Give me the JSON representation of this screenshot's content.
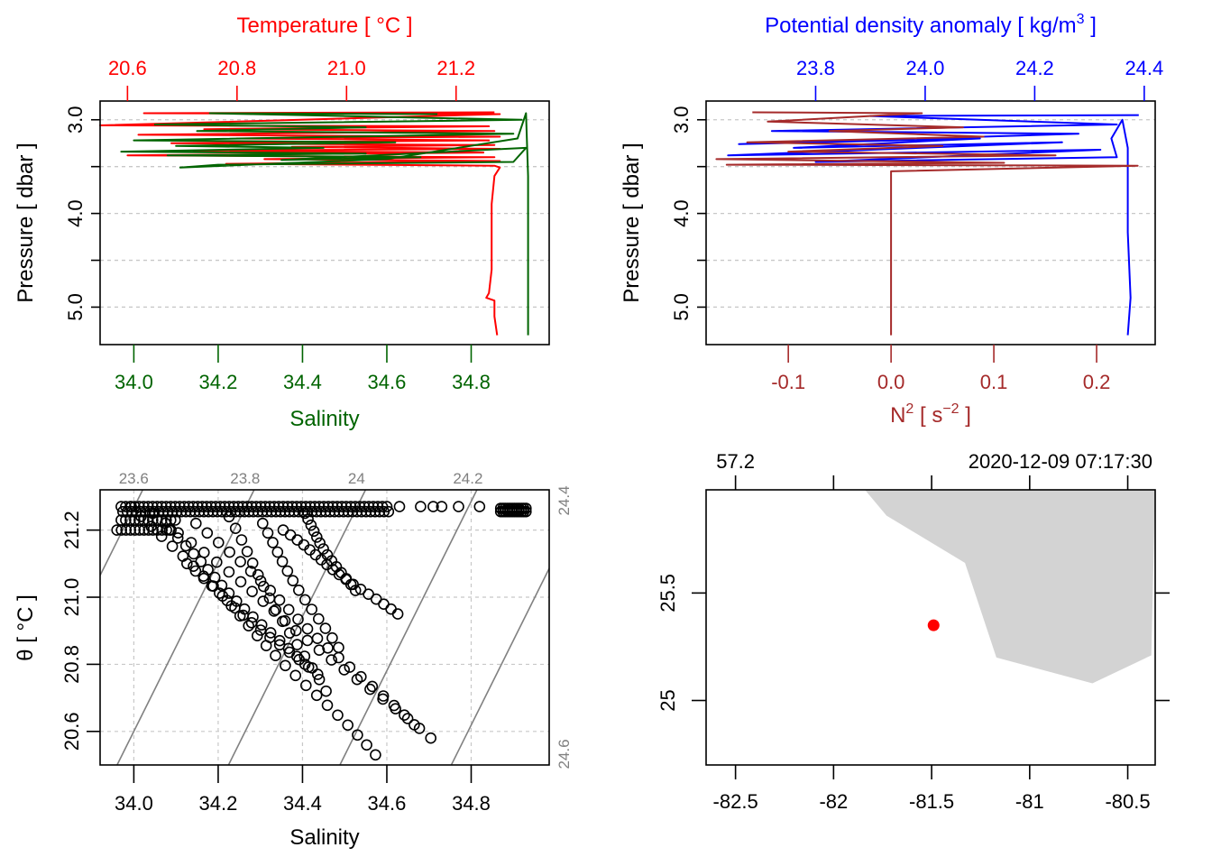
{
  "colors": {
    "temperature": "#ff0000",
    "salinity": "#006400",
    "density": "#0000ff",
    "n2": "#a52a2a",
    "grid": "#c8c8c8",
    "isopycnal": "#808080",
    "land": "#d3d3d3",
    "station": "#ff0000",
    "axis": "#000000"
  },
  "chart_data": [
    {
      "id": "profile-TS",
      "type": "line",
      "title": "",
      "ylabel": "Pressure [ dbar ]",
      "ylim": [
        5.4,
        2.8
      ],
      "yticks": [
        3.0,
        4.0,
        5.0
      ],
      "yminor": [
        3.5,
        4.5
      ],
      "ytick_labels": [
        "3.0",
        "4.0",
        "5.0"
      ],
      "grid": true,
      "x_bottom": {
        "label": "Salinity",
        "range": [
          33.92,
          34.985
        ],
        "ticks": [
          34.0,
          34.2,
          34.4,
          34.6,
          34.8
        ],
        "tick_labels": [
          "34.0",
          "34.2",
          "34.4",
          "34.6",
          "34.8"
        ]
      },
      "x_top": {
        "label": "Temperature [ °C ]",
        "range": [
          20.55,
          21.37
        ],
        "ticks": [
          20.6,
          20.8,
          21.0,
          21.2
        ],
        "tick_labels": [
          "20.6",
          "20.8",
          "21.0",
          "21.2"
        ]
      },
      "series": [
        {
          "name": "Temperature",
          "axis": "top",
          "points": [
            [
              21.27,
              2.92
            ],
            [
              20.63,
              2.93
            ],
            [
              21.28,
              2.94
            ],
            [
              20.55,
              3.06
            ],
            [
              21.26,
              3.07
            ],
            [
              20.74,
              3.1
            ],
            [
              21.27,
              3.12
            ],
            [
              20.62,
              3.16
            ],
            [
              21.28,
              3.18
            ],
            [
              20.8,
              3.2
            ],
            [
              21.26,
              3.22
            ],
            [
              20.68,
              3.25
            ],
            [
              21.27,
              3.27
            ],
            [
              20.9,
              3.29
            ],
            [
              21.28,
              3.31
            ],
            [
              20.72,
              3.33
            ],
            [
              21.25,
              3.35
            ],
            [
              20.6,
              3.38
            ],
            [
              21.27,
              3.4
            ],
            [
              20.85,
              3.42
            ],
            [
              21.28,
              3.44
            ],
            [
              20.78,
              3.47
            ],
            [
              21.27,
              3.49
            ],
            [
              21.28,
              3.51
            ],
            [
              21.27,
              3.6
            ],
            [
              21.265,
              3.9
            ],
            [
              21.265,
              4.3
            ],
            [
              21.265,
              4.6
            ],
            [
              21.26,
              4.85
            ],
            [
              21.255,
              4.9
            ],
            [
              21.27,
              4.93
            ],
            [
              21.27,
              5.1
            ],
            [
              21.275,
              5.3
            ]
          ]
        },
        {
          "name": "Salinity",
          "axis": "bottom",
          "points": [
            [
              34.72,
              2.94
            ],
            [
              34.18,
              2.93
            ],
            [
              34.92,
              3.0
            ],
            [
              34.05,
              3.05
            ],
            [
              34.55,
              3.08
            ],
            [
              34.15,
              3.12
            ],
            [
              34.9,
              3.15
            ],
            [
              34.0,
              3.22
            ],
            [
              34.62,
              3.24
            ],
            [
              34.1,
              3.28
            ],
            [
              34.45,
              3.3
            ],
            [
              33.97,
              3.34
            ],
            [
              34.55,
              3.36
            ],
            [
              34.08,
              3.38
            ],
            [
              34.68,
              3.4
            ],
            [
              34.35,
              3.43
            ],
            [
              34.93,
              3.3
            ],
            [
              34.9,
              3.45
            ],
            [
              34.2,
              3.48
            ],
            [
              34.11,
              3.51
            ],
            [
              34.6,
              3.42
            ],
            [
              34.91,
              3.2
            ],
            [
              34.93,
              2.93
            ],
            [
              34.935,
              3.6
            ],
            [
              34.935,
              4.2
            ],
            [
              34.935,
              4.8
            ],
            [
              34.935,
              5.3
            ]
          ]
        }
      ]
    },
    {
      "id": "profile-density-N2",
      "type": "line",
      "title": "",
      "ylabel": "Pressure [ dbar ]",
      "ylim": [
        5.4,
        2.8
      ],
      "yticks": [
        3.0,
        4.0,
        5.0
      ],
      "yminor": [
        3.5,
        4.5
      ],
      "ytick_labels": [
        "3.0",
        "4.0",
        "5.0"
      ],
      "grid": true,
      "x_bottom": {
        "label": "N² [ s⁻² ]",
        "range": [
          -0.18,
          0.257
        ],
        "ticks": [
          -0.1,
          0.0,
          0.1,
          0.2
        ],
        "tick_labels": [
          "-0.1",
          "0.0",
          "0.1",
          "0.2"
        ]
      },
      "x_top": {
        "label": "Potential density anomaly [ kg/m³ ]",
        "range": [
          23.6,
          24.42
        ],
        "ticks": [
          23.8,
          24.0,
          24.2,
          24.4
        ],
        "tick_labels": [
          "23.8",
          "24.0",
          "24.2",
          "24.4"
        ]
      },
      "series": [
        {
          "name": "Potential density anomaly",
          "axis": "top",
          "points": [
            [
              24.39,
              2.95
            ],
            [
              23.9,
              2.96
            ],
            [
              24.35,
              3.05
            ],
            [
              23.72,
              3.12
            ],
            [
              24.28,
              3.15
            ],
            [
              23.66,
              3.26
            ],
            [
              24.1,
              3.2
            ],
            [
              23.76,
              3.3
            ],
            [
              24.25,
              3.24
            ],
            [
              23.64,
              3.38
            ],
            [
              24.32,
              3.32
            ],
            [
              23.8,
              3.45
            ],
            [
              24.35,
              3.4
            ],
            [
              24.34,
              3.2
            ],
            [
              24.36,
              3.0
            ],
            [
              24.37,
              3.3
            ],
            [
              24.37,
              3.6
            ],
            [
              24.37,
              4.2
            ],
            [
              24.375,
              4.9
            ],
            [
              24.37,
              5.3
            ]
          ]
        },
        {
          "name": "N2",
          "axis": "bottom",
          "points": [
            [
              -0.135,
              2.92
            ],
            [
              0.03,
              2.93
            ],
            [
              -0.12,
              3.02
            ],
            [
              0.07,
              3.08
            ],
            [
              -0.06,
              3.12
            ],
            [
              0.09,
              3.18
            ],
            [
              -0.14,
              3.24
            ],
            [
              0.05,
              3.28
            ],
            [
              -0.1,
              3.34
            ],
            [
              0.16,
              3.38
            ],
            [
              -0.17,
              3.42
            ],
            [
              0.11,
              3.46
            ],
            [
              -0.16,
              3.48
            ],
            [
              0.24,
              3.49
            ],
            [
              0.0,
              3.55
            ],
            [
              0.0,
              3.6
            ],
            [
              0.0,
              4.9
            ],
            [
              0.0,
              5.3
            ]
          ]
        }
      ]
    },
    {
      "id": "TS-diagram",
      "type": "scatter",
      "title": "",
      "xlabel": "Salinity",
      "ylabel": "θ [ °C ]",
      "xlim": [
        33.92,
        34.985
      ],
      "ylim": [
        20.5,
        21.32
      ],
      "xticks": [
        34.0,
        34.2,
        34.4,
        34.6,
        34.8
      ],
      "xtick_labels": [
        "34.0",
        "34.2",
        "34.4",
        "34.6",
        "34.8"
      ],
      "yticks": [
        20.6,
        20.8,
        21.0,
        21.2
      ],
      "ytick_labels": [
        "20.6",
        "20.8",
        "21.0",
        "21.2"
      ],
      "grid": true,
      "isopycnals": [
        {
          "label": "23.6",
          "value": 23.6,
          "label_side": "top"
        },
        {
          "label": "23.8",
          "value": 23.8,
          "label_side": "top"
        },
        {
          "label": "24",
          "value": 24.0,
          "label_side": "top"
        },
        {
          "label": "24.2",
          "value": 24.2,
          "label_side": "top"
        },
        {
          "label": "24.4",
          "value": 24.4,
          "label_side": "right"
        },
        {
          "label": "24.6",
          "value": 24.6,
          "label_side": "right"
        }
      ],
      "branches": [
        {
          "from": [
            34.0,
            21.27
          ],
          "to": [
            34.57,
            20.53
          ],
          "n": 26
        },
        {
          "from": [
            34.05,
            21.25
          ],
          "to": [
            34.7,
            20.58
          ],
          "n": 24
        },
        {
          "from": [
            34.15,
            21.22
          ],
          "to": [
            34.66,
            20.62
          ],
          "n": 22
        },
        {
          "from": [
            34.22,
            21.24
          ],
          "to": [
            34.45,
            20.72
          ],
          "n": 16
        },
        {
          "from": [
            34.3,
            21.22
          ],
          "to": [
            34.48,
            20.85
          ],
          "n": 14
        },
        {
          "from": [
            34.35,
            21.2
          ],
          "to": [
            34.62,
            20.95
          ],
          "n": 18
        },
        {
          "from": [
            34.4,
            21.25
          ],
          "to": [
            34.52,
            21.02
          ],
          "n": 14
        },
        {
          "from": [
            34.08,
            21.2
          ],
          "to": [
            34.4,
            20.8
          ],
          "n": 18
        },
        {
          "from": [
            34.12,
            21.1
          ],
          "to": [
            34.43,
            20.77
          ],
          "n": 16
        }
      ],
      "top_row": {
        "salinity_from": 33.97,
        "salinity_to": 34.6,
        "theta": 21.27,
        "n": 60
      },
      "isolated_points": [
        [
          34.63,
          21.27
        ],
        [
          34.68,
          21.27
        ],
        [
          34.71,
          21.27
        ],
        [
          34.73,
          21.27
        ],
        [
          34.77,
          21.27
        ],
        [
          34.82,
          21.27
        ]
      ],
      "cluster": {
        "salinity_from": 34.87,
        "salinity_to": 34.93,
        "theta": 21.265,
        "n": 12
      }
    },
    {
      "id": "station-map",
      "type": "scatter",
      "title": "",
      "xlabel": "",
      "ylabel": "",
      "xlim": [
        -82.65,
        -80.36
      ],
      "ylim": [
        24.7,
        25.98
      ],
      "xticks": [
        -82.5,
        -82,
        -81.5,
        -81,
        -80.5
      ],
      "xtick_labels": [
        "-82.5",
        "-82",
        "-81.5",
        "-81",
        "-80.5"
      ],
      "yticks": [
        25.0,
        25.5
      ],
      "ytick_labels": [
        "25",
        "25.5"
      ],
      "top_labels": [
        "57.2",
        "2020-12-09 07:17:30"
      ],
      "land_polygon": [
        [
          -81.84,
          25.98
        ],
        [
          -81.73,
          25.86
        ],
        [
          -81.33,
          25.64
        ],
        [
          -81.17,
          25.2
        ],
        [
          -80.68,
          25.08
        ],
        [
          -80.38,
          25.21
        ],
        [
          -80.36,
          25.98
        ]
      ],
      "station": {
        "lon": -81.49,
        "lat": 25.35
      }
    }
  ]
}
